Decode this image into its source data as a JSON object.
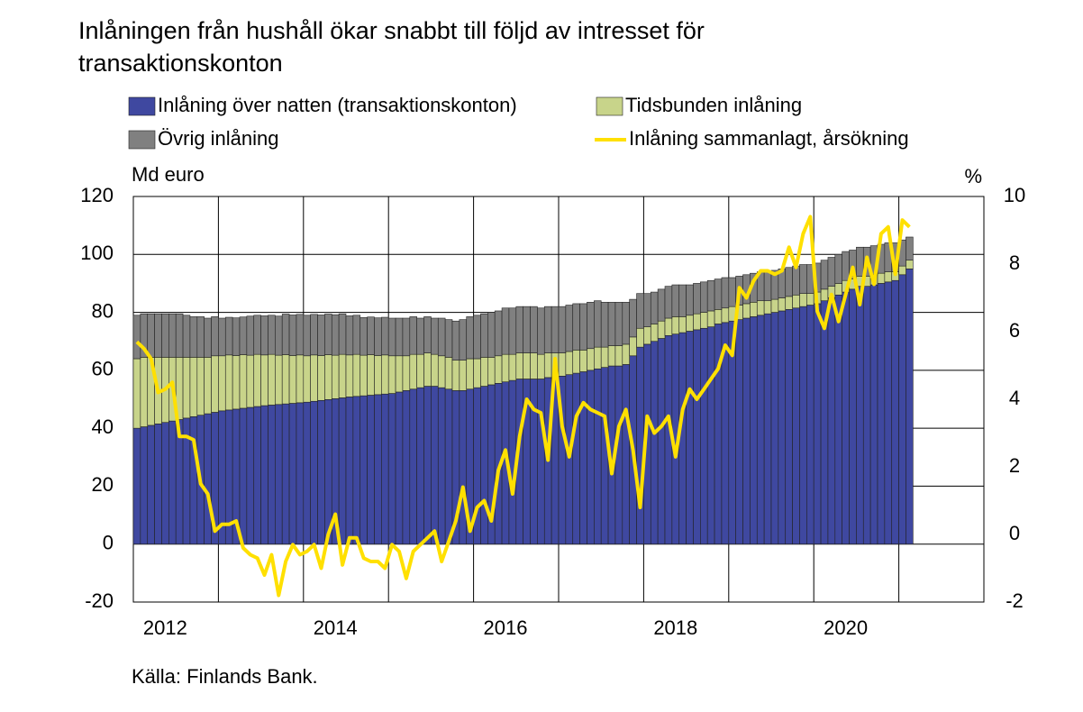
{
  "chart_data": {
    "type": "bar",
    "stacked": true,
    "title": [
      "Inlåningen från hushåll ökar snabbt till följd av intresset för",
      "transaktionskonton"
    ],
    "ylabel": "Md euro",
    "y2label": "%",
    "source": "Källa: Finlands Bank.",
    "categories": [
      null,
      null,
      null,
      null,
      "2012",
      null,
      null,
      null,
      null,
      null,
      null,
      null,
      null,
      null,
      null,
      null,
      null,
      null,
      null,
      null,
      null,
      null,
      null,
      null,
      null,
      null,
      null,
      null,
      "2014",
      null,
      null,
      null,
      null,
      null,
      null,
      null,
      null,
      null,
      null,
      null,
      null,
      null,
      null,
      null,
      null,
      null,
      null,
      null,
      null,
      null,
      null,
      null,
      "2016",
      null,
      null,
      null,
      null,
      null,
      null,
      null,
      null,
      null,
      null,
      null,
      null,
      null,
      null,
      null,
      null,
      null,
      null,
      null,
      null,
      null,
      null,
      null,
      "2018",
      null,
      null,
      null,
      null,
      null,
      null,
      null,
      null,
      null,
      null,
      null,
      null,
      null,
      null,
      null,
      null,
      null,
      null,
      null,
      null,
      null,
      null,
      null,
      "2020",
      null,
      null,
      null,
      null,
      null,
      null,
      null,
      null,
      null
    ],
    "series": [
      {
        "name": "Inlåning över natten (transaktionskonton)",
        "color": "#3f48a0",
        "values": [
          40,
          40.5,
          41,
          41.5,
          42,
          42.5,
          43,
          43.5,
          44,
          44.5,
          45,
          45.5,
          46,
          46.3,
          46.6,
          46.9,
          47.2,
          47.5,
          47.8,
          48,
          48.2,
          48.4,
          48.6,
          48.8,
          49,
          49.3,
          49.6,
          49.9,
          50.2,
          50.5,
          50.8,
          51,
          51.2,
          51.4,
          51.6,
          51.8,
          52,
          52.5,
          53,
          53.5,
          54,
          54.5,
          54.5,
          54,
          53.5,
          53,
          53,
          53.5,
          54,
          54.5,
          55,
          55.5,
          56,
          56.5,
          57,
          57,
          57,
          57,
          57.5,
          57.5,
          58,
          58.5,
          59,
          59.5,
          60,
          60.5,
          61,
          61.5,
          61.5,
          62,
          65,
          68,
          69,
          70,
          71,
          72,
          72.5,
          73,
          73.5,
          74,
          74.5,
          75,
          76,
          76.5,
          77,
          77.5,
          78,
          78.5,
          79,
          79.5,
          80,
          80.5,
          81,
          81.5,
          82,
          82.5,
          83,
          84,
          85,
          86,
          87,
          88,
          89,
          89,
          89.5,
          90,
          90.5,
          91,
          93,
          95
        ]
      },
      {
        "name": "Tidsbunden inlåning",
        "color": "#c8d48a",
        "values": [
          24,
          24,
          23.5,
          23,
          22.5,
          22,
          21.5,
          21,
          20.5,
          20,
          19.5,
          19.5,
          19,
          19,
          18.5,
          18.5,
          18,
          18,
          17.5,
          17.5,
          17,
          17,
          16.5,
          16.5,
          16,
          16,
          15.5,
          15.5,
          15,
          15,
          14.5,
          14.5,
          14,
          14,
          13.5,
          13.5,
          13,
          12.5,
          12,
          12,
          11.5,
          11.5,
          11,
          11,
          11,
          10.5,
          10.5,
          10.5,
          10,
          10,
          9.5,
          9.5,
          9.5,
          9,
          9,
          9,
          9,
          8.5,
          8.5,
          8.5,
          8,
          8,
          8,
          7.5,
          7.5,
          7.5,
          7,
          7,
          7,
          7,
          6.5,
          6.5,
          6,
          6,
          6,
          6,
          6,
          5.5,
          5.5,
          5.5,
          5.5,
          5.5,
          5,
          5,
          5,
          5,
          5,
          5,
          5,
          4.5,
          4.5,
          4.5,
          4.5,
          4.5,
          4.5,
          4,
          4,
          4,
          4,
          4,
          4,
          3.5,
          3.5,
          3.5,
          3.5,
          3.5,
          3.5,
          3,
          3,
          3
        ]
      },
      {
        "name": "Övrig inlåning",
        "color": "#808080",
        "values": [
          15,
          15,
          15,
          15,
          15,
          15,
          15,
          14.5,
          14,
          14,
          13.5,
          13.5,
          13,
          13,
          13,
          13,
          13.5,
          13.5,
          13.5,
          13.5,
          13.5,
          14,
          14,
          14,
          14,
          14,
          14,
          14,
          14,
          14,
          13.5,
          13.5,
          13,
          13,
          13,
          13,
          13,
          13,
          13,
          13,
          12.5,
          12.5,
          12.5,
          13,
          13,
          13.5,
          14,
          14.5,
          15,
          15,
          15.5,
          15.5,
          16,
          16,
          16,
          16,
          16,
          16,
          16,
          16,
          16,
          16,
          16,
          16,
          16,
          16,
          15.5,
          15,
          15,
          14.5,
          13,
          12,
          11.5,
          11,
          11,
          11,
          11,
          11,
          10.5,
          10.5,
          10.5,
          10.5,
          10.5,
          10.5,
          10,
          10,
          10,
          10,
          10,
          10,
          10,
          10,
          10,
          10,
          10,
          10,
          10,
          10,
          10,
          10,
          10,
          10,
          10,
          10,
          10,
          10,
          10,
          10,
          9,
          8
        ]
      },
      {
        "name": "Inlåning sammanlagt, årsökning",
        "color": "#ffe000",
        "type": "line",
        "axis": "y2",
        "values": [
          5.7,
          5.5,
          5.2,
          4.2,
          4.3,
          4.5,
          2.9,
          2.9,
          2.8,
          1.5,
          1.2,
          0.1,
          0.3,
          0.3,
          0.4,
          -0.4,
          -0.6,
          -0.7,
          -1.2,
          -0.6,
          -1.8,
          -0.8,
          -0.3,
          -0.6,
          -0.5,
          -0.3,
          -1.0,
          0.0,
          0.6,
          -0.9,
          -0.1,
          -0.1,
          -0.7,
          -0.8,
          -0.8,
          -1.0,
          -0.3,
          -0.5,
          -1.3,
          -0.5,
          -0.3,
          -0.1,
          0.1,
          -0.8,
          -0.2,
          0.4,
          1.4,
          0.1,
          0.8,
          1.0,
          0.4,
          1.9,
          2.5,
          1.2,
          2.9,
          4.0,
          3.7,
          3.6,
          2.2,
          5.2,
          3.2,
          2.3,
          3.5,
          3.9,
          3.7,
          3.6,
          3.5,
          1.8,
          3.2,
          3.7,
          2.5,
          0.8,
          3.5,
          3.0,
          3.2,
          3.5,
          2.3,
          3.7,
          4.3,
          4.0,
          4.3,
          4.6,
          4.9,
          5.6,
          5.3,
          7.3,
          7.0,
          7.5,
          7.8,
          7.8,
          7.7,
          7.8,
          8.5,
          7.9,
          8.9,
          9.4,
          6.6,
          6.1,
          7.1,
          6.3,
          7.1,
          7.9,
          6.8,
          8.2,
          7.4,
          8.9,
          9.1,
          7.7,
          9.3,
          9.1
        ]
      }
    ],
    "ylim": [
      -20,
      120
    ],
    "yticks": [
      -20,
      0,
      20,
      40,
      60,
      80,
      100,
      120
    ],
    "y2lim": [
      -2,
      10
    ],
    "y2ticks": [
      -2,
      0,
      2,
      4,
      6,
      8,
      10
    ],
    "grid": true
  }
}
